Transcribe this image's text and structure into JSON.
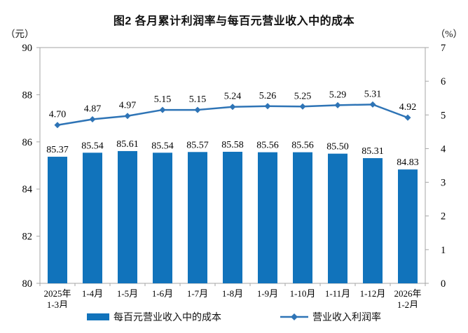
{
  "chart_data": {
    "type": "bar",
    "combo": "bar+line",
    "title": "图2 各月累计利润率与每百元营业收入中的成本",
    "categories": [
      "2025年\n1-3月",
      "1-4月",
      "1-5月",
      "1-6月",
      "1-7月",
      "1-8月",
      "1-9月",
      "1-10月",
      "1-11月",
      "1-12月",
      "2026年\n1-2月"
    ],
    "series": [
      {
        "name": "每百元营业收入中的成本",
        "type": "bar",
        "axis": "left",
        "color": "#1173BB",
        "values": [
          85.37,
          85.54,
          85.61,
          85.54,
          85.57,
          85.58,
          85.56,
          85.56,
          85.5,
          85.31,
          84.83
        ]
      },
      {
        "name": "营业收入利润率",
        "type": "line",
        "axis": "right",
        "color": "#2E74B6",
        "values": [
          4.7,
          4.87,
          4.97,
          5.15,
          5.15,
          5.24,
          5.26,
          5.25,
          5.29,
          5.31,
          4.92
        ]
      }
    ],
    "left_axis": {
      "unit": "（元）",
      "min": 80,
      "max": 90,
      "ticks": [
        90,
        88,
        86,
        84,
        82,
        80
      ]
    },
    "right_axis": {
      "unit": "（%）",
      "min": 0,
      "max": 7,
      "ticks": [
        7,
        6,
        5,
        4,
        3,
        2,
        1,
        0
      ]
    },
    "grid": false,
    "legend_position": "bottom",
    "plot_border_color": "#A6A6A6",
    "label_decimals": 2
  }
}
